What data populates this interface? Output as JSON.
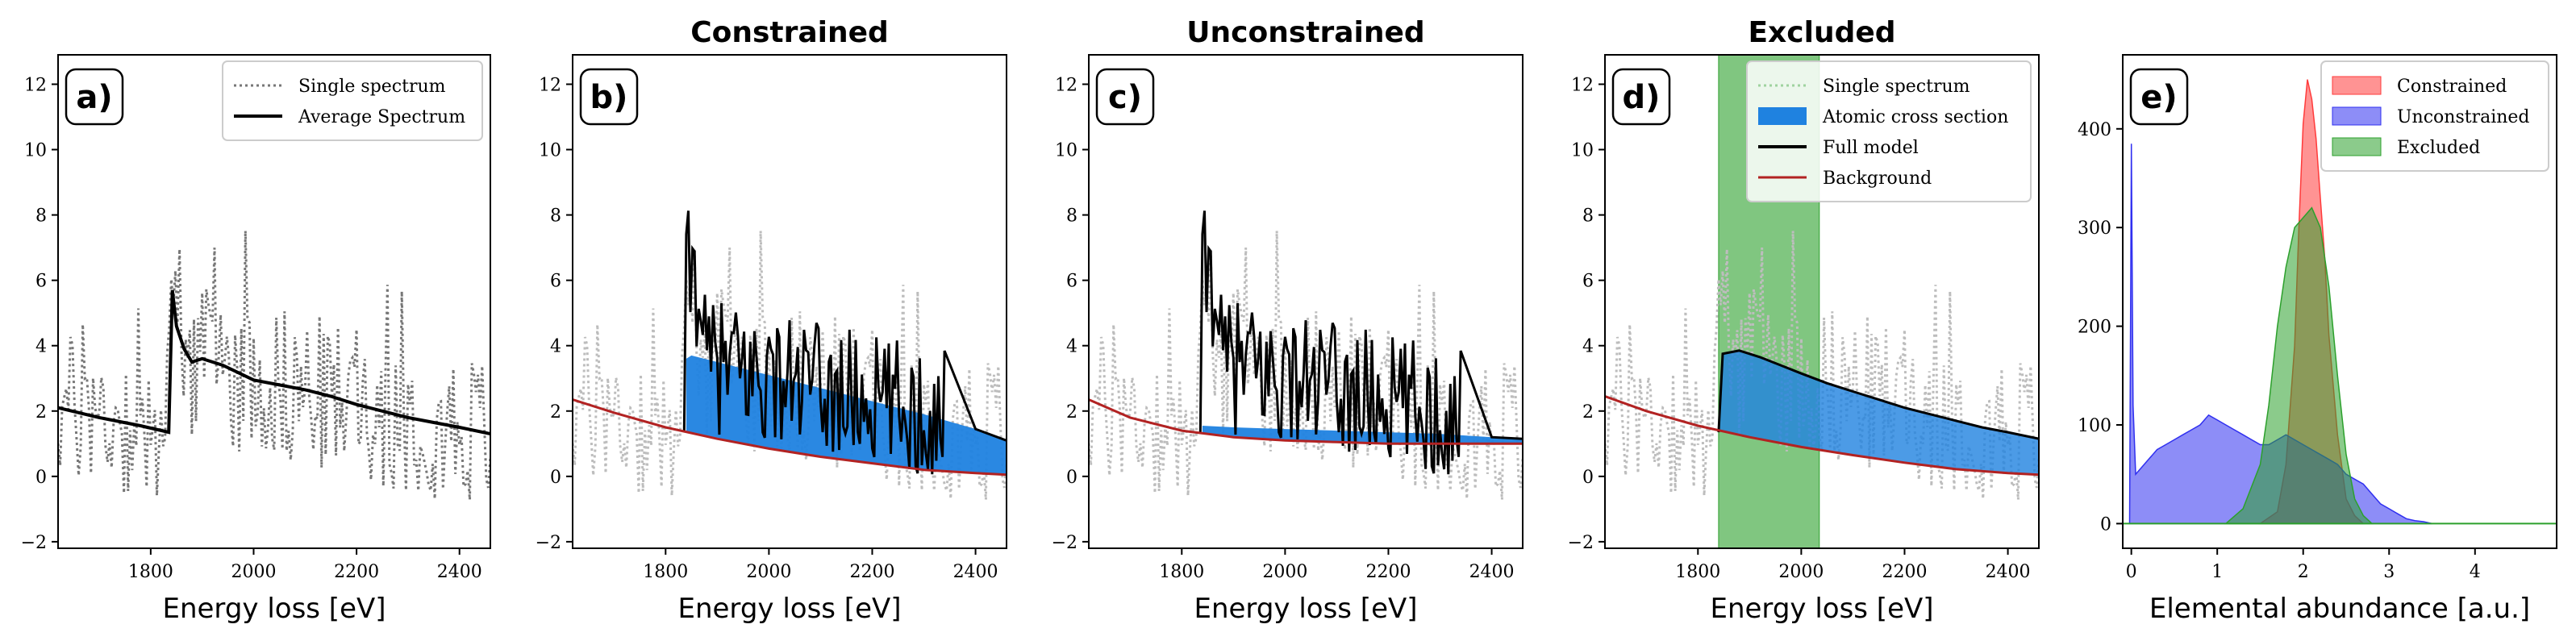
{
  "chart_data": [
    {
      "id": "a",
      "type": "line",
      "tag": "a)",
      "title": "",
      "xlabel": "Energy loss [eV]",
      "ylabel": "",
      "xlim": [
        1620,
        2460
      ],
      "ylim": [
        -2.2,
        12.9
      ],
      "xticks": [
        1800,
        2000,
        2200,
        2400
      ],
      "yticks": [
        -2,
        0,
        2,
        4,
        6,
        8,
        10,
        12
      ],
      "legend": [
        "Single spectrum",
        "Average Spectrum"
      ],
      "legend_position": "top-right",
      "edge_onset": 1840,
      "series": [
        {
          "name": "Single spectrum",
          "style": "dotted",
          "color": "#777777",
          "noise_mean": [
            [
              1620,
              2.1
            ],
            [
              1830,
              1.4
            ],
            [
              1845,
              5.6
            ],
            [
              1880,
              3.6
            ],
            [
              2000,
              3.0
            ],
            [
              2460,
              1.3
            ]
          ]
        },
        {
          "name": "Average Spectrum",
          "style": "solid",
          "color": "#000000",
          "x": [
            1620,
            1700,
            1780,
            1835,
            1842,
            1850,
            1865,
            1880,
            1900,
            1940,
            1980,
            2000,
            2050,
            2100,
            2150,
            2200,
            2250,
            2300,
            2350,
            2400,
            2460
          ],
          "y": [
            2.1,
            1.8,
            1.55,
            1.35,
            5.7,
            4.6,
            3.9,
            3.5,
            3.6,
            3.4,
            3.1,
            2.95,
            2.8,
            2.65,
            2.45,
            2.2,
            2.0,
            1.8,
            1.65,
            1.5,
            1.3
          ]
        }
      ]
    },
    {
      "id": "b",
      "type": "line",
      "tag": "b)",
      "title": "Constrained",
      "xlabel": "Energy loss [eV]",
      "xlim": [
        1620,
        2460
      ],
      "ylim": [
        -2.2,
        12.9
      ],
      "xticks": [
        1800,
        2000,
        2200,
        2400
      ],
      "yticks": [
        -2,
        0,
        2,
        4,
        6,
        8,
        10,
        12
      ],
      "edge_onset": 1840,
      "background": {
        "x": [
          1620,
          1700,
          1800,
          1900,
          2000,
          2100,
          2200,
          2300,
          2400,
          2460
        ],
        "y": [
          2.35,
          1.95,
          1.5,
          1.15,
          0.85,
          0.6,
          0.4,
          0.2,
          0.1,
          0.05
        ]
      },
      "cross_section_top": {
        "x": [
          1840,
          1850,
          1900,
          2000,
          2100,
          2200,
          2300,
          2400,
          2460
        ],
        "y": [
          3.6,
          3.7,
          3.5,
          3.1,
          2.7,
          2.3,
          1.9,
          1.45,
          1.1
        ]
      },
      "fit_x_range": [
        1840,
        2340
      ],
      "fit_mean": [
        [
          1840,
          3.6
        ],
        [
          2340,
          1.8
        ]
      ],
      "single_noise_mean": [
        [
          1620,
          2.1
        ],
        [
          1830,
          1.4
        ],
        [
          1845,
          5.6
        ],
        [
          1880,
          3.6
        ],
        [
          2000,
          3.0
        ],
        [
          2460,
          1.3
        ]
      ]
    },
    {
      "id": "c",
      "type": "line",
      "tag": "c)",
      "title": "Unconstrained",
      "xlabel": "Energy loss [eV]",
      "xlim": [
        1620,
        2460
      ],
      "ylim": [
        -2.2,
        12.9
      ],
      "xticks": [
        1800,
        2000,
        2200,
        2400
      ],
      "yticks": [
        -2,
        0,
        2,
        4,
        6,
        8,
        10,
        12
      ],
      "edge_onset": 1840,
      "background": {
        "x": [
          1620,
          1700,
          1800,
          1900,
          2000,
          2100,
          2200,
          2300,
          2400,
          2460
        ],
        "y": [
          2.35,
          1.8,
          1.4,
          1.2,
          1.1,
          1.05,
          1.0,
          1.0,
          1.0,
          1.0
        ]
      },
      "cross_section_top": {
        "x": [
          1840,
          1900,
          2000,
          2100,
          2200,
          2300,
          2400,
          2460
        ],
        "y": [
          1.55,
          1.5,
          1.45,
          1.4,
          1.35,
          1.3,
          1.2,
          1.15
        ]
      },
      "fit_x_range": [
        1840,
        2340
      ],
      "fit_mean": [
        [
          1840,
          3.6
        ],
        [
          2340,
          1.8
        ]
      ],
      "single_noise_mean": [
        [
          1620,
          2.1
        ],
        [
          1830,
          1.4
        ],
        [
          1845,
          5.6
        ],
        [
          1880,
          3.6
        ],
        [
          2000,
          3.0
        ],
        [
          2460,
          1.3
        ]
      ]
    },
    {
      "id": "d",
      "type": "line",
      "tag": "d)",
      "title": "Excluded",
      "xlabel": "Energy loss [eV]",
      "xlim": [
        1620,
        2460
      ],
      "ylim": [
        -2.2,
        12.9
      ],
      "xticks": [
        1800,
        2000,
        2200,
        2400
      ],
      "yticks": [
        -2,
        0,
        2,
        4,
        6,
        8,
        10,
        12
      ],
      "edge_onset": 1840,
      "excluded_region": [
        1840,
        2035
      ],
      "legend": [
        "Single spectrum",
        "Atomic cross section",
        "Full model",
        "Background"
      ],
      "legend_position": "top-right",
      "background": {
        "x": [
          1620,
          1700,
          1800,
          1900,
          2000,
          2100,
          2200,
          2300,
          2400,
          2460
        ],
        "y": [
          2.45,
          2.0,
          1.55,
          1.2,
          0.9,
          0.65,
          0.42,
          0.22,
          0.1,
          0.05
        ]
      },
      "full_model": {
        "x": [
          1840,
          1848,
          1880,
          1920,
          1960,
          2000,
          2050,
          2100,
          2150,
          2200,
          2250,
          2300,
          2350,
          2400,
          2460
        ],
        "y": [
          1.35,
          3.75,
          3.85,
          3.65,
          3.4,
          3.15,
          2.85,
          2.6,
          2.35,
          2.1,
          1.9,
          1.7,
          1.5,
          1.35,
          1.15
        ]
      },
      "single_noise_mean": [
        [
          1620,
          2.1
        ],
        [
          1830,
          1.4
        ],
        [
          1845,
          5.6
        ],
        [
          1880,
          3.6
        ],
        [
          2000,
          3.0
        ],
        [
          2460,
          1.3
        ]
      ]
    },
    {
      "id": "e",
      "type": "area",
      "tag": "e)",
      "title": "",
      "xlabel": "Elemental abundance [a.u.]",
      "xlim": [
        -0.1,
        4.95
      ],
      "ylim": [
        -25,
        475
      ],
      "xticks": [
        0,
        1,
        2,
        3,
        4
      ],
      "yticks": [
        0,
        100,
        200,
        300,
        400
      ],
      "legend": [
        "Constrained",
        "Unconstrained",
        "Excluded"
      ],
      "legend_position": "top-right",
      "series": [
        {
          "name": "Constrained",
          "color": "#ff3b3b",
          "x": [
            1.5,
            1.7,
            1.8,
            1.9,
            1.95,
            2.0,
            2.05,
            2.1,
            2.15,
            2.2,
            2.25,
            2.3,
            2.4,
            2.5,
            2.6,
            2.7
          ],
          "y": [
            0,
            12,
            60,
            180,
            300,
            405,
            450,
            430,
            390,
            330,
            270,
            190,
            90,
            25,
            8,
            0
          ]
        },
        {
          "name": "Unconstrained",
          "color": "#3030f0",
          "x": [
            -0.02,
            0.0,
            0.02,
            0.05,
            0.1,
            0.2,
            0.3,
            0.4,
            0.5,
            0.6,
            0.7,
            0.8,
            0.9,
            1.0,
            1.1,
            1.2,
            1.3,
            1.4,
            1.5,
            1.6,
            1.7,
            1.8,
            1.9,
            2.0,
            2.1,
            2.2,
            2.3,
            2.4,
            2.5,
            2.6,
            2.7,
            2.8,
            2.9,
            3.0,
            3.1,
            3.2,
            3.3,
            3.4,
            3.5
          ],
          "y": [
            0,
            385,
            120,
            50,
            55,
            65,
            75,
            80,
            85,
            90,
            95,
            100,
            110,
            105,
            100,
            95,
            90,
            85,
            80,
            80,
            85,
            90,
            85,
            80,
            75,
            70,
            65,
            60,
            50,
            45,
            40,
            30,
            20,
            15,
            10,
            5,
            3,
            2,
            0
          ]
        },
        {
          "name": "Excluded",
          "color": "#2ca02c",
          "x": [
            1.1,
            1.3,
            1.5,
            1.6,
            1.7,
            1.8,
            1.9,
            2.0,
            2.1,
            2.2,
            2.3,
            2.4,
            2.5,
            2.6,
            2.7,
            2.8
          ],
          "y": [
            0,
            15,
            60,
            120,
            200,
            260,
            300,
            310,
            320,
            300,
            240,
            150,
            70,
            25,
            8,
            0
          ]
        }
      ]
    }
  ]
}
